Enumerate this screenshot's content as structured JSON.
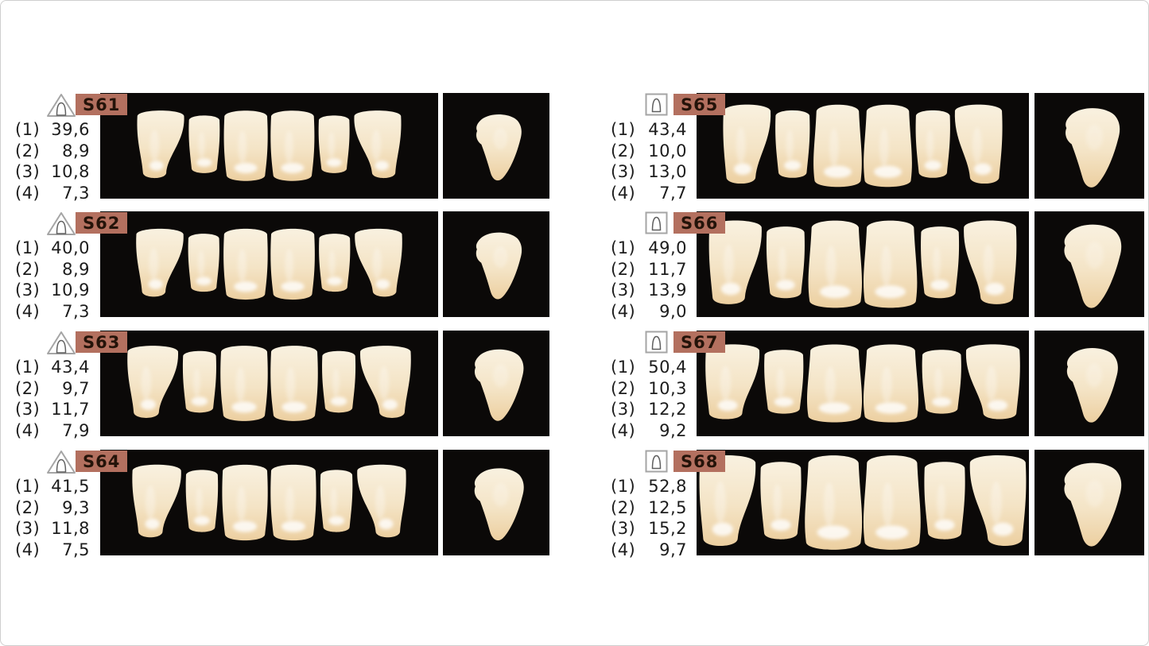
{
  "colors": {
    "page_bg": "#ffffff",
    "frame_border": "#cfcfcf",
    "panel_bg": "#0b0908",
    "badge_bg": "#b3705f",
    "badge_text": "#241309",
    "text": "#1c1c1c",
    "icon_stroke": "#a5a5a5",
    "icon_inner_stroke": "#5f5f5f",
    "tooth_light": "#f9f1e0",
    "tooth_mid": "#f4e4c6",
    "tooth_dark": "#eccfa0"
  },
  "columns": [
    {
      "mold_icon": "triangle-mold-icon",
      "entries": [
        {
          "code": "S61",
          "measurements": [
            [
              "(1)",
              "39,6"
            ],
            [
              "(2)",
              "8,9"
            ],
            [
              "(3)",
              "10,8"
            ],
            [
              "(4)",
              "7,3"
            ]
          ]
        },
        {
          "code": "S62",
          "measurements": [
            [
              "(1)",
              "40,0"
            ],
            [
              "(2)",
              "8,9"
            ],
            [
              "(3)",
              "10,9"
            ],
            [
              "(4)",
              "7,3"
            ]
          ]
        },
        {
          "code": "S63",
          "measurements": [
            [
              "(1)",
              "43,4"
            ],
            [
              "(2)",
              "9,7"
            ],
            [
              "(3)",
              "11,7"
            ],
            [
              "(4)",
              "7,9"
            ]
          ]
        },
        {
          "code": "S64",
          "measurements": [
            [
              "(1)",
              "41,5"
            ],
            [
              "(2)",
              "9,3"
            ],
            [
              "(3)",
              "11,8"
            ],
            [
              "(4)",
              "7,5"
            ]
          ]
        }
      ]
    },
    {
      "mold_icon": "square-mold-icon",
      "entries": [
        {
          "code": "S65",
          "measurements": [
            [
              "(1)",
              "43,4"
            ],
            [
              "(2)",
              "10,0"
            ],
            [
              "(3)",
              "13,0"
            ],
            [
              "(4)",
              "7,7"
            ]
          ]
        },
        {
          "code": "S66",
          "measurements": [
            [
              "(1)",
              "49,0"
            ],
            [
              "(2)",
              "11,7"
            ],
            [
              "(3)",
              "13,9"
            ],
            [
              "(4)",
              "9,0"
            ]
          ]
        },
        {
          "code": "S67",
          "measurements": [
            [
              "(1)",
              "50,4"
            ],
            [
              "(2)",
              "10,3"
            ],
            [
              "(3)",
              "12,2"
            ],
            [
              "(4)",
              "9,2"
            ]
          ]
        },
        {
          "code": "S68",
          "measurements": [
            [
              "(1)",
              "52,8"
            ],
            [
              "(2)",
              "12,5"
            ],
            [
              "(3)",
              "15,2"
            ],
            [
              "(4)",
              "9,7"
            ]
          ]
        }
      ]
    }
  ]
}
